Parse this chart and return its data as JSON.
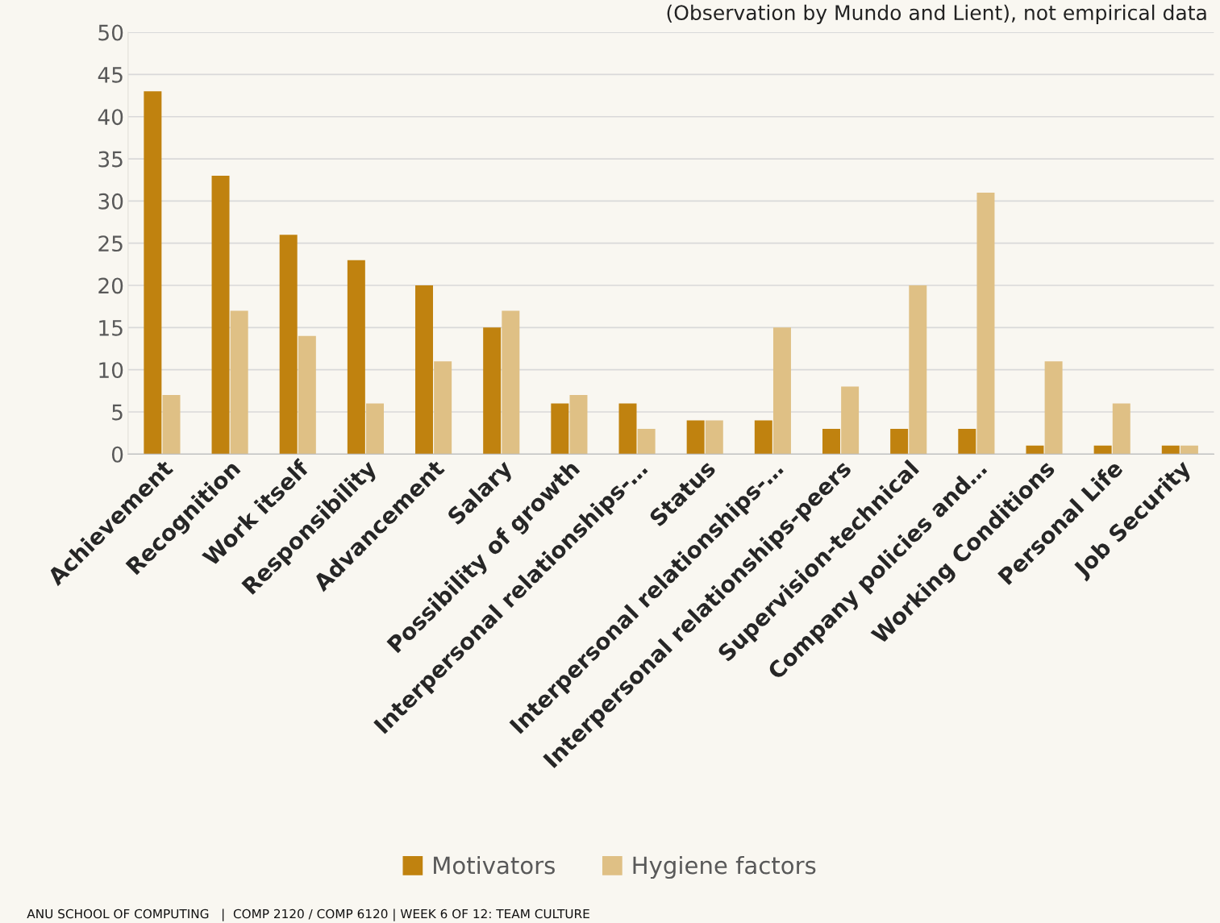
{
  "chart_data": {
    "type": "bar",
    "subtitle": "(Observation by Mundo and Lient), not empirical data",
    "categories": [
      "Achievement",
      "Recognition",
      "Work itself",
      "Responsibility",
      "Advancement",
      "Salary",
      "Possibility of growth",
      "Interpersonal relationships-…",
      "Status",
      "Interpersonal relationships-…",
      "Interpersonal relationships-peers",
      "Supervision-technical",
      "Company policies and…",
      "Working Conditions",
      "Personal Life",
      "Job Security"
    ],
    "series": [
      {
        "name": "Motivators",
        "color": "#c0820f",
        "values": [
          43,
          33,
          26,
          23,
          20,
          15,
          6,
          6,
          4,
          4,
          3,
          3,
          3,
          1,
          1,
          1
        ]
      },
      {
        "name": "Hygiene factors",
        "color": "#dfc085",
        "values": [
          7,
          17,
          14,
          6,
          11,
          17,
          7,
          3,
          4,
          15,
          8,
          20,
          31,
          11,
          6,
          1
        ]
      }
    ],
    "ylim": [
      0,
      50
    ],
    "yticks": [
      0,
      5,
      10,
      15,
      20,
      25,
      30,
      35,
      40,
      45,
      50
    ],
    "grid": "y",
    "legend": "bottom",
    "annotations": [
      "ANU SCHOOL OF COMPUTING   |  COMP 2120 / COMP 6120 | WEEK 6 OF 12: TEAM CULTURE"
    ]
  }
}
